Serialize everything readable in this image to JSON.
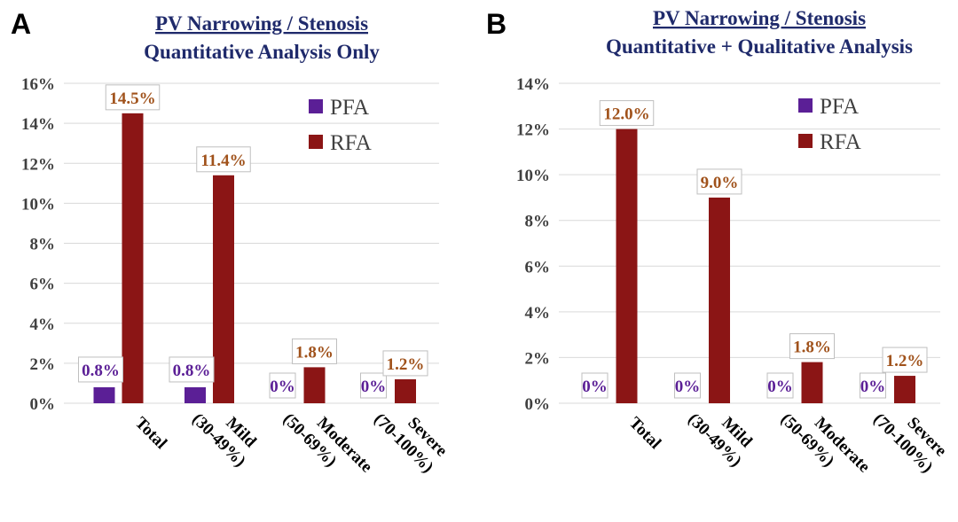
{
  "colors": {
    "pfa": "#5b1f96",
    "rfa": "#8b1515",
    "title": "#1f2a6b",
    "pfa_label": "#5b1f96",
    "rfa_label": "#a0521b",
    "grid": "#d9d9d9",
    "label_border": "#bfbfbf"
  },
  "chart_data": [
    {
      "panel": "A",
      "type": "bar",
      "title": "PV Narrowing / Stenosis",
      "subtitle": "Quantitative Analysis Only",
      "categories": [
        [
          "Total"
        ],
        [
          "Mild",
          "(30-49%)"
        ],
        [
          "Moderate",
          "(50-69%)"
        ],
        [
          "Severe",
          "(70-100%)"
        ]
      ],
      "series": [
        {
          "name": "PFA",
          "values": [
            0.8,
            0.8,
            0,
            0
          ],
          "labels": [
            "0.8%",
            "0.8%",
            "0%",
            "0%"
          ]
        },
        {
          "name": "RFA",
          "values": [
            14.5,
            11.4,
            1.8,
            1.2
          ],
          "labels": [
            "14.5%",
            "11.4%",
            "1.8%",
            "1.2%"
          ]
        }
      ],
      "ylim": [
        0,
        16
      ],
      "yticks": [
        "0%",
        "2%",
        "4%",
        "6%",
        "8%",
        "10%",
        "12%",
        "14%",
        "16%"
      ],
      "legend": [
        "PFA",
        "RFA"
      ],
      "legend_position": "top-right",
      "grid": true
    },
    {
      "panel": "B",
      "type": "bar",
      "title": "PV Narrowing / Stenosis",
      "subtitle": "Quantitative + Qualitative Analysis",
      "categories": [
        [
          "Total"
        ],
        [
          "Mild",
          "(30-49%)"
        ],
        [
          "Moderate",
          "(50-69%)"
        ],
        [
          "Severe",
          "(70-100%)"
        ]
      ],
      "series": [
        {
          "name": "PFA",
          "values": [
            0,
            0,
            0,
            0
          ],
          "labels": [
            "0%",
            "0%",
            "0%",
            "0%"
          ]
        },
        {
          "name": "RFA",
          "values": [
            12.0,
            9.0,
            1.8,
            1.2
          ],
          "labels": [
            "12.0%",
            "9.0%",
            "1.8%",
            "1.2%"
          ]
        }
      ],
      "ylim": [
        0,
        14
      ],
      "yticks": [
        "0%",
        "2%",
        "4%",
        "6%",
        "8%",
        "10%",
        "12%",
        "14%"
      ],
      "legend": [
        "PFA",
        "RFA"
      ],
      "legend_position": "top-right",
      "grid": true
    }
  ]
}
